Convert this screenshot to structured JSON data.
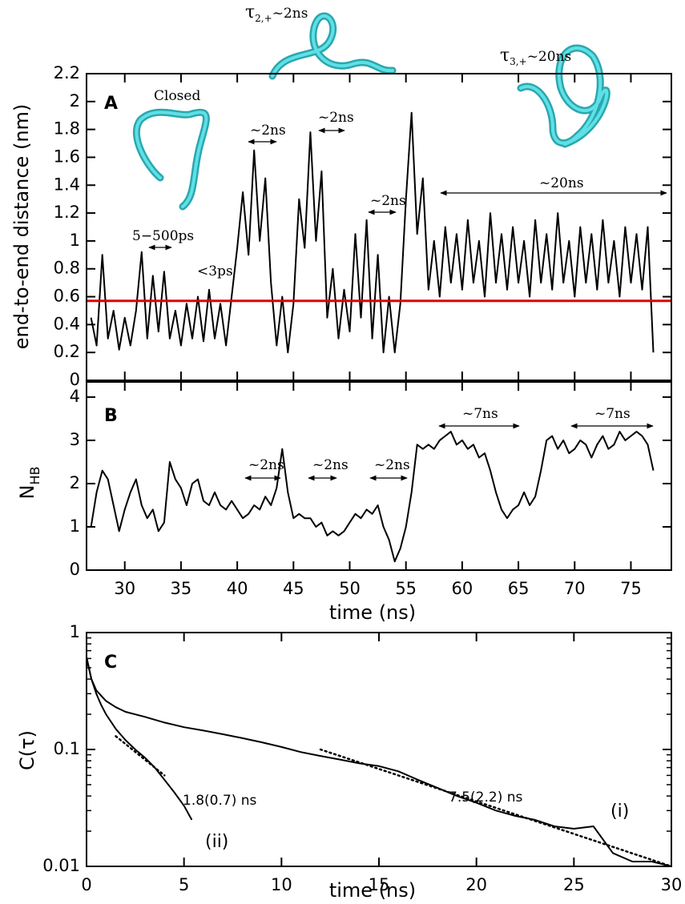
{
  "chart_data": [
    {
      "type": "line",
      "ylabel": "end-to-end distance (nm)",
      "x": [
        27,
        27.5,
        28,
        28.5,
        29,
        29.5,
        30,
        30.5,
        31,
        31.5,
        32,
        32.5,
        33,
        33.5,
        34,
        34.5,
        35,
        35.5,
        36,
        36.5,
        37,
        37.5,
        38,
        38.5,
        39,
        39.5,
        40,
        40.5,
        41,
        41.5,
        42,
        42.5,
        43,
        43.5,
        44,
        44.5,
        45,
        45.5,
        46,
        46.5,
        47,
        47.5,
        48,
        48.5,
        49,
        49.5,
        50,
        50.5,
        51,
        51.5,
        52,
        52.5,
        53,
        53.5,
        54,
        54.5,
        55,
        55.5,
        56,
        56.5,
        57,
        57.5,
        58,
        58.5,
        59,
        59.5,
        60,
        60.5,
        61,
        61.5,
        62,
        62.5,
        63,
        63.5,
        64,
        64.5,
        65,
        65.5,
        66,
        66.5,
        67,
        67.5,
        68,
        68.5,
        69,
        69.5,
        70,
        70.5,
        71,
        71.5,
        72,
        72.5,
        73,
        73.5,
        74,
        74.5,
        75,
        75.5,
        76,
        76.5,
        77
      ],
      "values": [
        0.45,
        0.25,
        0.9,
        0.3,
        0.5,
        0.22,
        0.45,
        0.25,
        0.5,
        0.92,
        0.3,
        0.75,
        0.35,
        0.78,
        0.3,
        0.5,
        0.25,
        0.55,
        0.3,
        0.6,
        0.28,
        0.65,
        0.3,
        0.55,
        0.25,
        0.6,
        0.95,
        1.35,
        0.9,
        1.65,
        1.0,
        1.45,
        0.7,
        0.25,
        0.6,
        0.2,
        0.55,
        1.3,
        0.95,
        1.78,
        1.0,
        1.5,
        0.45,
        0.8,
        0.3,
        0.65,
        0.35,
        1.05,
        0.45,
        1.15,
        0.3,
        0.9,
        0.2,
        0.6,
        0.2,
        0.55,
        1.3,
        1.92,
        1.05,
        1.45,
        0.65,
        1.0,
        0.6,
        1.1,
        0.7,
        1.05,
        0.65,
        1.15,
        0.7,
        1.0,
        0.6,
        1.2,
        0.7,
        1.05,
        0.65,
        1.1,
        0.7,
        1.0,
        0.6,
        1.15,
        0.7,
        1.05,
        0.65,
        1.2,
        0.7,
        1.0,
        0.6,
        1.1,
        0.7,
        1.05,
        0.65,
        1.15,
        0.7,
        1.0,
        0.6,
        1.1,
        0.7,
        1.05,
        0.65,
        1.1,
        0.2
      ],
      "color": "#000000",
      "reference_line": {
        "value": 0.57,
        "color": "#e00000"
      },
      "xlim": [
        26.6,
        78.6
      ],
      "xticks": [
        30,
        35,
        40,
        45,
        50,
        55,
        60,
        65,
        70,
        75
      ],
      "ylim": [
        0,
        2.2
      ],
      "yticks": [
        0,
        0.2,
        0.4,
        0.6,
        0.8,
        1,
        1.2,
        1.4,
        1.6,
        1.8,
        2,
        2.2
      ],
      "annotations": [
        {
          "text": "A"
        },
        {
          "text": "Closed"
        },
        {
          "text": "5−500ps"
        },
        {
          "text": "<3ps"
        },
        {
          "text": "~2ns"
        },
        {
          "text": "~2ns"
        },
        {
          "text": "~2ns"
        },
        {
          "text": "~20ns"
        },
        {
          "text": "τ",
          "sub": "2,+",
          "suffix": "~2ns"
        },
        {
          "text": "τ",
          "sub": "3,+",
          "suffix": "~20ns"
        }
      ]
    },
    {
      "type": "line",
      "ylabel": "N",
      "ylabel_sub": "HB",
      "xlabel": "time (ns)",
      "x": [
        27,
        27.5,
        28,
        28.5,
        29,
        29.5,
        30,
        30.5,
        31,
        31.5,
        32,
        32.5,
        33,
        33.5,
        34,
        34.5,
        35,
        35.5,
        36,
        36.5,
        37,
        37.5,
        38,
        38.5,
        39,
        39.5,
        40,
        40.5,
        41,
        41.5,
        42,
        42.5,
        43,
        43.5,
        44,
        44.5,
        45,
        45.5,
        46,
        46.5,
        47,
        47.5,
        48,
        48.5,
        49,
        49.5,
        50,
        50.5,
        51,
        51.5,
        52,
        52.5,
        53,
        53.5,
        54,
        54.5,
        55,
        55.5,
        56,
        56.5,
        57,
        57.5,
        58,
        58.5,
        59,
        59.5,
        60,
        60.5,
        61,
        61.5,
        62,
        62.5,
        63,
        63.5,
        64,
        64.5,
        65,
        65.5,
        66,
        66.5,
        67,
        67.5,
        68,
        68.5,
        69,
        69.5,
        70,
        70.5,
        71,
        71.5,
        72,
        72.5,
        73,
        73.5,
        74,
        74.5,
        75,
        75.5,
        76,
        76.5,
        77
      ],
      "values": [
        1.0,
        1.8,
        2.3,
        2.1,
        1.5,
        0.9,
        1.4,
        1.8,
        2.1,
        1.5,
        1.2,
        1.4,
        0.9,
        1.1,
        2.5,
        2.1,
        1.9,
        1.5,
        2.0,
        2.1,
        1.6,
        1.5,
        1.8,
        1.5,
        1.4,
        1.6,
        1.4,
        1.2,
        1.3,
        1.5,
        1.4,
        1.7,
        1.5,
        1.9,
        2.8,
        1.8,
        1.2,
        1.3,
        1.2,
        1.2,
        1.0,
        1.1,
        0.8,
        0.9,
        0.8,
        0.9,
        1.1,
        1.3,
        1.2,
        1.4,
        1.3,
        1.5,
        1.0,
        0.7,
        0.2,
        0.5,
        1.0,
        1.8,
        2.9,
        2.8,
        2.9,
        2.8,
        3.0,
        3.1,
        3.2,
        2.9,
        3.0,
        2.8,
        2.9,
        2.6,
        2.7,
        2.3,
        1.8,
        1.4,
        1.2,
        1.4,
        1.5,
        1.8,
        1.5,
        1.7,
        2.3,
        3.0,
        3.1,
        2.8,
        3.0,
        2.7,
        2.8,
        3.0,
        2.9,
        2.6,
        2.9,
        3.1,
        2.8,
        2.9,
        3.2,
        3.0,
        3.1,
        3.2,
        3.1,
        2.9,
        2.3
      ],
      "color": "#000000",
      "xlim": [
        26.6,
        78.6
      ],
      "xticks": [
        30,
        35,
        40,
        45,
        50,
        55,
        60,
        65,
        70,
        75
      ],
      "ylim": [
        0,
        4.35
      ],
      "yticks": [
        0,
        1,
        2,
        3,
        4
      ],
      "annotations": [
        {
          "text": "B"
        },
        {
          "text": "~7ns"
        },
        {
          "text": "~7ns"
        },
        {
          "text": "~2ns"
        },
        {
          "text": "~2ns"
        },
        {
          "text": "~2ns"
        }
      ]
    },
    {
      "type": "line",
      "ylabel": "C(τ)",
      "xlabel": "time (ns)",
      "log_y": true,
      "series": [
        {
          "color": "#000000",
          "style": "solid",
          "x": [
            0,
            0.25,
            0.5,
            1,
            1.5,
            2,
            3,
            4,
            5,
            6,
            7,
            8,
            9,
            10,
            11,
            12,
            13,
            14,
            15,
            16,
            17,
            18,
            19,
            20,
            21,
            22,
            23,
            24,
            25,
            26,
            27,
            28,
            29,
            30
          ],
          "values": [
            0.62,
            0.4,
            0.32,
            0.26,
            0.23,
            0.21,
            0.19,
            0.17,
            0.155,
            0.145,
            0.135,
            0.125,
            0.115,
            0.105,
            0.095,
            0.088,
            0.082,
            0.076,
            0.072,
            0.065,
            0.055,
            0.047,
            0.04,
            0.035,
            0.03,
            0.027,
            0.025,
            0.022,
            0.021,
            0.022,
            0.013,
            0.011,
            0.011,
            0.01
          ]
        },
        {
          "color": "#000000",
          "style": "solid",
          "x": [
            0,
            0.25,
            0.5,
            0.75,
            1,
            1.5,
            2,
            2.5,
            3,
            3.5,
            4,
            4.5,
            5,
            5.4
          ],
          "values": [
            0.6,
            0.4,
            0.3,
            0.24,
            0.2,
            0.15,
            0.12,
            0.1,
            0.085,
            0.07,
            0.055,
            0.043,
            0.033,
            0.025
          ]
        },
        {
          "color": "#000000",
          "style": "dotted",
          "x": [
            12,
            30
          ],
          "values": [
            0.1,
            0.01
          ]
        },
        {
          "color": "#000000",
          "style": "dotted",
          "x": [
            1.5,
            4
          ],
          "values": [
            0.13,
            0.06
          ]
        }
      ],
      "xlim": [
        0,
        30
      ],
      "xticks": [
        0,
        5,
        10,
        15,
        20,
        25,
        30
      ],
      "ylim": [
        0.01,
        1
      ],
      "yticks": [
        0.01,
        0.1,
        1
      ],
      "minor_yticks": [
        0.02,
        0.03,
        0.04,
        0.05,
        0.06,
        0.07,
        0.08,
        0.09,
        0.2,
        0.3,
        0.4,
        0.5,
        0.6,
        0.7,
        0.8,
        0.9
      ],
      "annotations": [
        {
          "text": "C"
        },
        {
          "text": "1.8(0.7) ns"
        },
        {
          "text": "7.5(2.2) ns"
        },
        {
          "text": "(i)"
        },
        {
          "text": "(ii)"
        }
      ]
    }
  ]
}
